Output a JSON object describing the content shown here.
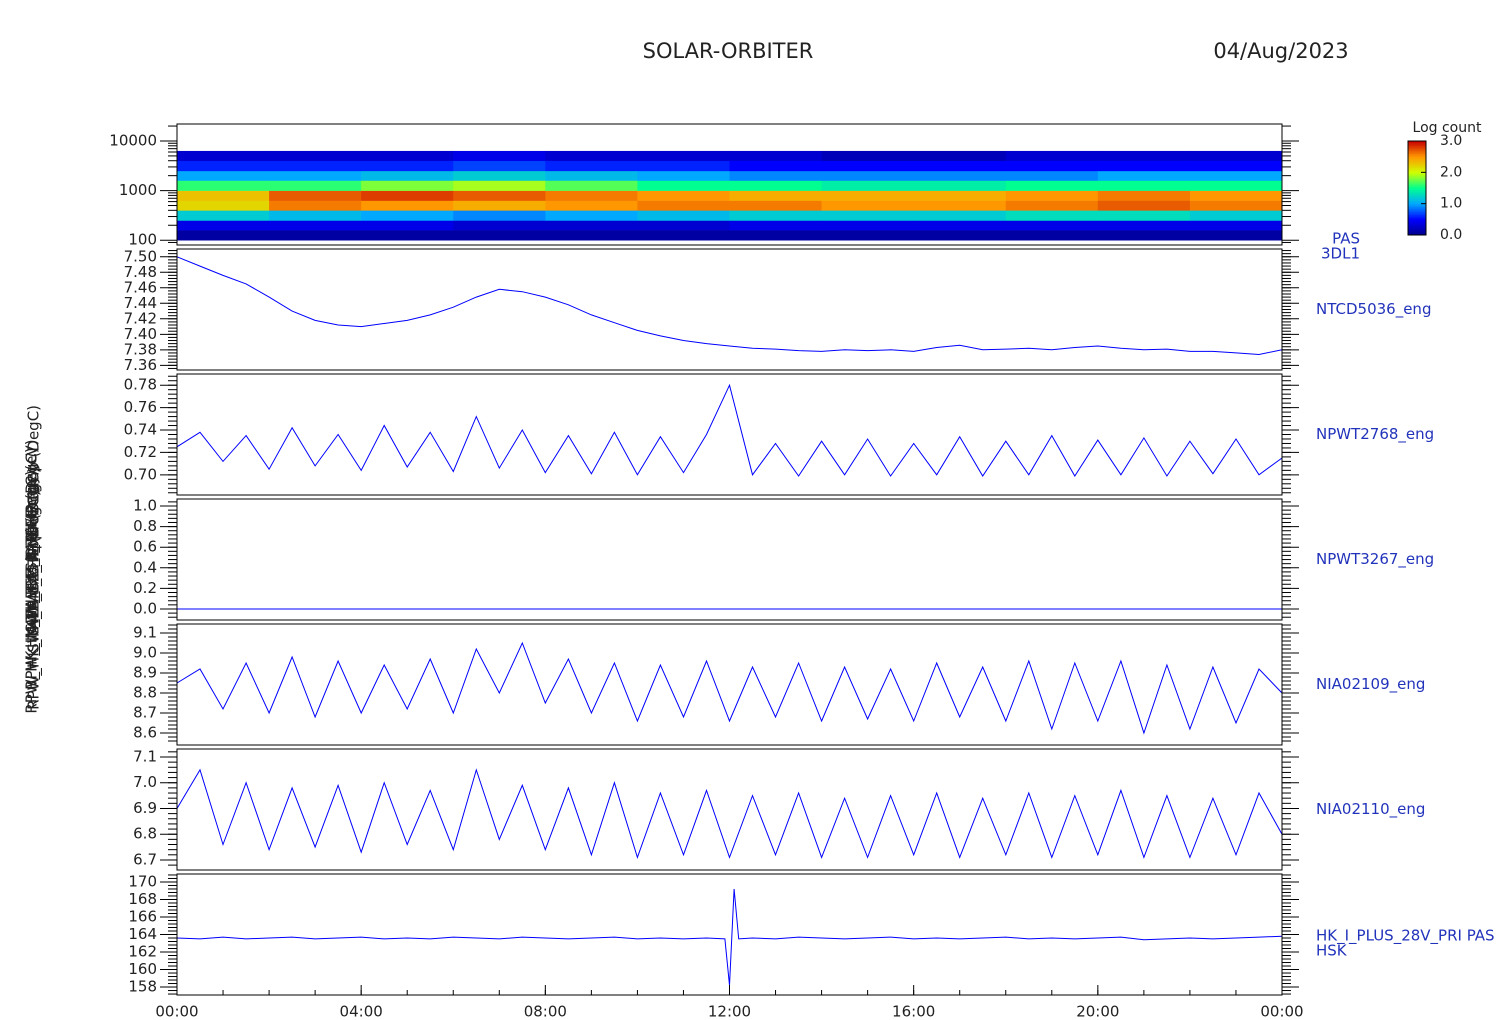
{
  "header": {
    "title": "SOLAR-ORBITER",
    "date": "04/Aug/2023"
  },
  "xaxis": {
    "xlim": [
      0,
      24
    ],
    "xticks": [
      {
        "value": 0,
        "label": "00:00"
      },
      {
        "value": 4,
        "label": "04:00"
      },
      {
        "value": 8,
        "label": "08:00"
      },
      {
        "value": 12,
        "label": "12:00"
      },
      {
        "value": 16,
        "label": "16:00"
      },
      {
        "value": 20,
        "label": "20:00"
      },
      {
        "value": 24,
        "label": "00:00"
      }
    ]
  },
  "colorbar": {
    "title": "Log count",
    "zlim": [
      0,
      3
    ],
    "zticks": [
      {
        "value": 0,
        "label": "0.0"
      },
      {
        "value": 1,
        "label": "1.0"
      },
      {
        "value": 2,
        "label": "2.0"
      },
      {
        "value": 3,
        "label": "3.0"
      }
    ],
    "colormap": [
      "#00008b",
      "#0000ff",
      "#00a8ff",
      "#00ff90",
      "#d0ff00",
      "#ff9800",
      "#c80000"
    ]
  },
  "chart_data": [
    {
      "type": "heatmap",
      "ylabel": "PAS Energy (eV)",
      "label_lines": [
        "PAS",
        "3DL1"
      ],
      "log_y": true,
      "ylim": [
        80,
        22000
      ],
      "yticks": [
        100,
        1000,
        10000
      ],
      "xbins": [
        0,
        2,
        4,
        6,
        8,
        10,
        12,
        14,
        16,
        18,
        20,
        22,
        24
      ],
      "ybins": [
        100,
        160,
        250,
        400,
        630,
        1000,
        1600,
        2500,
        4000,
        6300
      ],
      "z": [
        [
          0.1,
          0.4,
          1.2,
          2.2,
          2.3,
          1.6,
          1.0,
          0.6,
          0.3
        ],
        [
          0.1,
          0.4,
          1.1,
          2.6,
          2.7,
          1.6,
          1.0,
          0.6,
          0.3
        ],
        [
          0.1,
          0.4,
          1.0,
          2.5,
          2.8,
          1.8,
          1.1,
          0.6,
          0.3
        ],
        [
          0.1,
          0.3,
          0.9,
          2.4,
          2.7,
          1.9,
          1.2,
          0.7,
          0.4
        ],
        [
          0.1,
          0.3,
          1.0,
          2.5,
          2.6,
          1.7,
          1.1,
          0.6,
          0.3
        ],
        [
          0.1,
          0.3,
          1.1,
          2.6,
          2.5,
          1.5,
          1.0,
          0.6,
          0.3
        ],
        [
          0.1,
          0.4,
          1.2,
          2.6,
          2.4,
          1.5,
          0.9,
          0.5,
          0.3
        ],
        [
          0.1,
          0.4,
          1.2,
          2.5,
          2.4,
          1.4,
          0.9,
          0.5,
          0.2
        ],
        [
          0.1,
          0.4,
          1.2,
          2.5,
          2.4,
          1.4,
          0.9,
          0.5,
          0.2
        ],
        [
          0.1,
          0.4,
          1.3,
          2.6,
          2.5,
          1.5,
          0.9,
          0.5,
          0.3
        ],
        [
          0.1,
          0.4,
          1.3,
          2.7,
          2.6,
          1.5,
          1.0,
          0.5,
          0.3
        ],
        [
          0.1,
          0.4,
          1.2,
          2.6,
          2.5,
          1.5,
          1.0,
          0.5,
          0.3
        ]
      ]
    },
    {
      "type": "line",
      "ylabel": "SWA_EAS Approx Temp (DegC)",
      "label_lines": [
        "NTCD5036_eng"
      ],
      "color": "#0000ff",
      "ylim": [
        7.354,
        7.51
      ],
      "yticks": [
        {
          "value": 7.36,
          "label": "7.36"
        },
        {
          "value": 7.38,
          "label": "7.38"
        },
        {
          "value": 7.4,
          "label": "7.40"
        },
        {
          "value": 7.42,
          "label": "7.42"
        },
        {
          "value": 7.44,
          "label": "7.44"
        },
        {
          "value": 7.46,
          "label": "7.46"
        },
        {
          "value": 7.48,
          "label": "7.48"
        },
        {
          "value": 7.5,
          "label": "7.50"
        }
      ],
      "x": [
        0,
        0.5,
        1,
        1.5,
        2,
        2.5,
        3,
        3.5,
        4,
        4.5,
        5,
        5.5,
        6,
        6.5,
        7,
        7.5,
        8,
        8.5,
        9,
        9.5,
        10,
        10.5,
        11,
        11.5,
        12,
        12.5,
        13,
        13.5,
        14,
        14.5,
        15,
        15.5,
        16,
        16.5,
        17,
        17.5,
        18,
        18.5,
        19,
        19.5,
        20,
        20.5,
        21,
        21.5,
        22,
        22.5,
        23,
        23.5,
        24
      ],
      "values": [
        7.5,
        7.488,
        7.476,
        7.465,
        7.448,
        7.43,
        7.418,
        7.412,
        7.41,
        7.414,
        7.418,
        7.425,
        7.435,
        7.448,
        7.458,
        7.455,
        7.448,
        7.438,
        7.425,
        7.415,
        7.405,
        7.398,
        7.392,
        7.388,
        7.385,
        7.382,
        7.381,
        7.379,
        7.378,
        7.38,
        7.379,
        7.38,
        7.378,
        7.383,
        7.386,
        7.38,
        7.381,
        7.382,
        7.38,
        7.383,
        7.385,
        7.382,
        7.38,
        7.381,
        7.378,
        7.378,
        7.376,
        7.374,
        7.38
      ]
    },
    {
      "type": "line",
      "ylabel": "SWA_EAS1_TEMP (DegC)",
      "label_lines": [
        "NPWT2768_eng"
      ],
      "color": "#0000ff",
      "ylim": [
        0.682,
        0.79
      ],
      "yticks": [
        {
          "value": 0.7,
          "label": "0.70"
        },
        {
          "value": 0.72,
          "label": "0.72"
        },
        {
          "value": 0.74,
          "label": "0.74"
        },
        {
          "value": 0.76,
          "label": "0.76"
        },
        {
          "value": 0.78,
          "label": "0.78"
        }
      ],
      "x": [
        0,
        0.5,
        1,
        1.5,
        2,
        2.5,
        3,
        3.5,
        4,
        4.5,
        5,
        5.5,
        6,
        6.5,
        7,
        7.5,
        8,
        8.5,
        9,
        9.5,
        10,
        10.5,
        11,
        11.5,
        12,
        12.5,
        13,
        13.5,
        14,
        14.5,
        15,
        15.5,
        16,
        16.5,
        17,
        17.5,
        18,
        18.5,
        19,
        19.5,
        20,
        20.5,
        21,
        21.5,
        22,
        22.5,
        23,
        23.5,
        24
      ],
      "values": [
        0.725,
        0.738,
        0.712,
        0.735,
        0.705,
        0.742,
        0.708,
        0.736,
        0.704,
        0.744,
        0.707,
        0.738,
        0.703,
        0.752,
        0.706,
        0.74,
        0.702,
        0.735,
        0.701,
        0.738,
        0.7,
        0.734,
        0.702,
        0.736,
        0.78,
        0.7,
        0.728,
        0.699,
        0.73,
        0.7,
        0.732,
        0.699,
        0.728,
        0.7,
        0.734,
        0.699,
        0.73,
        0.7,
        0.735,
        0.699,
        0.731,
        0.7,
        0.733,
        0.699,
        0.73,
        0.701,
        0.732,
        0.7,
        0.715
      ]
    },
    {
      "type": "line",
      "ylabel": "SWA_EAS2_TEMP (DegC)",
      "label_lines": [
        "NPWT3267_eng"
      ],
      "color": "#0000ff",
      "ylim": [
        -0.107,
        1.068
      ],
      "yticks": [
        {
          "value": 0,
          "label": "0.0"
        },
        {
          "value": 0.2,
          "label": "0.2"
        },
        {
          "value": 0.4,
          "label": "0.4"
        },
        {
          "value": 0.6,
          "label": "0.6"
        },
        {
          "value": 0.8,
          "label": "0.8"
        },
        {
          "value": 1,
          "label": "1.0"
        }
      ],
      "x": [
        0,
        0.5,
        1,
        1.5,
        2,
        2.5,
        3,
        3.5,
        4,
        4.5,
        5,
        5.5,
        6,
        6.5,
        7,
        7.5,
        8,
        8.5,
        9,
        9.5,
        10,
        10.5,
        11,
        11.5,
        12,
        12.5,
        13,
        13.5,
        14,
        14.5,
        15,
        15.5,
        16,
        16.5,
        17,
        17.5,
        18,
        18.5,
        19,
        19.5,
        20,
        20.5,
        21,
        21.5,
        22,
        22.5,
        23,
        23.5,
        24
      ],
      "values": [
        0,
        0,
        0,
        0,
        0,
        0,
        0,
        0,
        0,
        0,
        0,
        0,
        0,
        0,
        0,
        0,
        0,
        0,
        0,
        0,
        0,
        0,
        0,
        0,
        0,
        0,
        0,
        0,
        0,
        0,
        0,
        0,
        0,
        0,
        0,
        0,
        0,
        0,
        0,
        0,
        0,
        0,
        0,
        0,
        0,
        0,
        0,
        0,
        0
      ]
    },
    {
      "type": "line",
      "ylabel": "RPW_HK_THERM_CH1 (DegC)",
      "label_lines": [
        "NIA02109_eng"
      ],
      "color": "#0000ff",
      "ylim": [
        8.54,
        9.145
      ],
      "yticks": [
        8.6,
        8.7,
        8.8,
        8.9,
        {
          "value": 9,
          "label": "9.0"
        },
        9.1
      ],
      "x": [
        0,
        0.5,
        1,
        1.5,
        2,
        2.5,
        3,
        3.5,
        4,
        4.5,
        5,
        5.5,
        6,
        6.5,
        7,
        7.5,
        8,
        8.5,
        9,
        9.5,
        10,
        10.5,
        11,
        11.5,
        12,
        12.5,
        13,
        13.5,
        14,
        14.5,
        15,
        15.5,
        16,
        16.5,
        17,
        17.5,
        18,
        18.5,
        19,
        19.5,
        20,
        20.5,
        21,
        21.5,
        22,
        22.5,
        23,
        23.5,
        24
      ],
      "values": [
        8.85,
        8.92,
        8.72,
        8.95,
        8.7,
        8.98,
        8.68,
        8.96,
        8.7,
        8.94,
        8.72,
        8.97,
        8.7,
        9.02,
        8.8,
        9.05,
        8.75,
        8.97,
        8.7,
        8.95,
        8.66,
        8.94,
        8.68,
        8.96,
        8.66,
        8.93,
        8.68,
        8.95,
        8.66,
        8.93,
        8.67,
        8.92,
        8.66,
        8.95,
        8.68,
        8.93,
        8.66,
        8.96,
        8.62,
        8.95,
        8.66,
        8.96,
        8.6,
        8.94,
        8.62,
        8.93,
        8.65,
        8.92,
        8.8
      ]
    },
    {
      "type": "line",
      "ylabel": "RPW_HK_THERM_CH2 (DegC)",
      "label_lines": [
        "NIA02110_eng"
      ],
      "color": "#0000ff",
      "ylim": [
        6.661,
        7.131
      ],
      "yticks": [
        6.7,
        6.8,
        6.9,
        {
          "value": 7,
          "label": "7.0"
        },
        7.1
      ],
      "x": [
        0,
        0.5,
        1,
        1.5,
        2,
        2.5,
        3,
        3.5,
        4,
        4.5,
        5,
        5.5,
        6,
        6.5,
        7,
        7.5,
        8,
        8.5,
        9,
        9.5,
        10,
        10.5,
        11,
        11.5,
        12,
        12.5,
        13,
        13.5,
        14,
        14.5,
        15,
        15.5,
        16,
        16.5,
        17,
        17.5,
        18,
        18.5,
        19,
        19.5,
        20,
        20.5,
        21,
        21.5,
        22,
        22.5,
        23,
        23.5,
        24
      ],
      "values": [
        6.9,
        7.05,
        6.76,
        7.0,
        6.74,
        6.98,
        6.75,
        6.99,
        6.73,
        7.0,
        6.76,
        6.97,
        6.74,
        7.05,
        6.78,
        6.99,
        6.74,
        6.98,
        6.72,
        7.0,
        6.71,
        6.96,
        6.72,
        6.97,
        6.71,
        6.95,
        6.72,
        6.96,
        6.71,
        6.94,
        6.71,
        6.95,
        6.72,
        6.96,
        6.71,
        6.94,
        6.72,
        6.96,
        6.71,
        6.95,
        6.72,
        6.97,
        6.71,
        6.95,
        6.71,
        6.94,
        6.72,
        6.96,
        6.8
      ]
    },
    {
      "type": "line",
      "ylabel": "RPW_HK_IMON_FEE (mA)",
      "label_lines": [
        "HK_I_PLUS_28V_PRI PAS",
        "HSK"
      ],
      "color": "#0000ff",
      "ylim": [
        157.09,
        170.91
      ],
      "yticks": [
        158,
        160,
        162,
        164,
        166,
        168,
        170
      ],
      "x": [
        0,
        0.5,
        1,
        1.5,
        2,
        2.5,
        3,
        3.5,
        4,
        4.5,
        5,
        5.5,
        6,
        6.5,
        7,
        7.5,
        8,
        8.5,
        9,
        9.5,
        10,
        10.5,
        11,
        11.5,
        11.9,
        12,
        12.1,
        12.2,
        12.5,
        13,
        13.5,
        14,
        14.5,
        15,
        15.5,
        16,
        16.5,
        17,
        17.5,
        18,
        18.5,
        19,
        19.5,
        20,
        20.5,
        21,
        21.5,
        22,
        22.5,
        23,
        23.5,
        24
      ],
      "values": [
        163.6,
        163.5,
        163.7,
        163.5,
        163.6,
        163.7,
        163.5,
        163.6,
        163.7,
        163.5,
        163.6,
        163.5,
        163.7,
        163.6,
        163.5,
        163.7,
        163.6,
        163.5,
        163.6,
        163.7,
        163.5,
        163.6,
        163.5,
        163.6,
        163.5,
        158.2,
        169.2,
        163.5,
        163.6,
        163.5,
        163.7,
        163.6,
        163.5,
        163.6,
        163.7,
        163.5,
        163.6,
        163.5,
        163.6,
        163.7,
        163.5,
        163.6,
        163.5,
        163.6,
        163.7,
        163.4,
        163.5,
        163.6,
        163.5,
        163.6,
        163.7,
        163.8
      ]
    }
  ]
}
